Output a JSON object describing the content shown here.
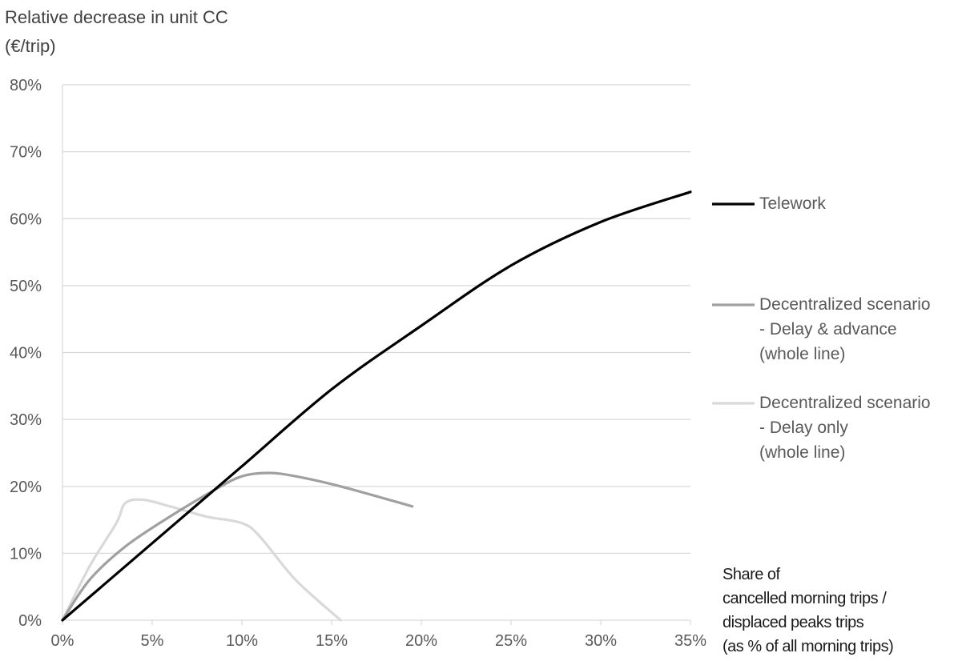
{
  "chart_data": {
    "type": "line",
    "ylabel_lines": [
      "Relative decrease in unit CC",
      "(€/trip)"
    ],
    "xlabel_lines": [
      "Share of",
      "cancelled morning trips /",
      "displaced peaks trips",
      "(as % of all morning trips)"
    ],
    "xlim": [
      0,
      35
    ],
    "ylim": [
      0,
      80
    ],
    "x_ticks": [
      "0%",
      "5%",
      "10%",
      "15%",
      "20%",
      "25%",
      "30%",
      "35%"
    ],
    "y_ticks": [
      "0%",
      "10%",
      "20%",
      "30%",
      "40%",
      "50%",
      "60%",
      "70%",
      "80%"
    ],
    "grid": "horizontal",
    "legend_position": "right",
    "series": [
      {
        "name": "Telework",
        "legend_lines": [
          "Telework"
        ],
        "color": "#000000",
        "points": [
          [
            0,
            0
          ],
          [
            5,
            11.5
          ],
          [
            10,
            23
          ],
          [
            15,
            34.5
          ],
          [
            20,
            44
          ],
          [
            25,
            53
          ],
          [
            30,
            59.5
          ],
          [
            35,
            64
          ]
        ]
      },
      {
        "name": "Decentralized scenario - Delay & advance (whole line)",
        "legend_lines": [
          "Decentralized scenario",
          "- Delay & advance",
          "(whole line)"
        ],
        "color": "#a0a0a0",
        "points": [
          [
            0,
            0
          ],
          [
            1.5,
            6
          ],
          [
            3.5,
            11
          ],
          [
            6,
            15.5
          ],
          [
            8.5,
            19.5
          ],
          [
            10,
            21.5
          ],
          [
            11.5,
            22
          ],
          [
            13,
            21.5
          ],
          [
            15.5,
            20
          ],
          [
            19.5,
            17
          ]
        ]
      },
      {
        "name": "Decentralized scenario - Delay only (whole line)",
        "legend_lines": [
          "Decentralized scenario",
          "- Delay only",
          "(whole line)"
        ],
        "color": "#d9d9d9",
        "points": [
          [
            0,
            0
          ],
          [
            1.5,
            8
          ],
          [
            3,
            14.5
          ],
          [
            3.5,
            17.5
          ],
          [
            4.5,
            18
          ],
          [
            6,
            17
          ],
          [
            8,
            15.5
          ],
          [
            10,
            14.5
          ],
          [
            11,
            12.5
          ],
          [
            13,
            6
          ],
          [
            15.5,
            0
          ]
        ]
      }
    ]
  }
}
